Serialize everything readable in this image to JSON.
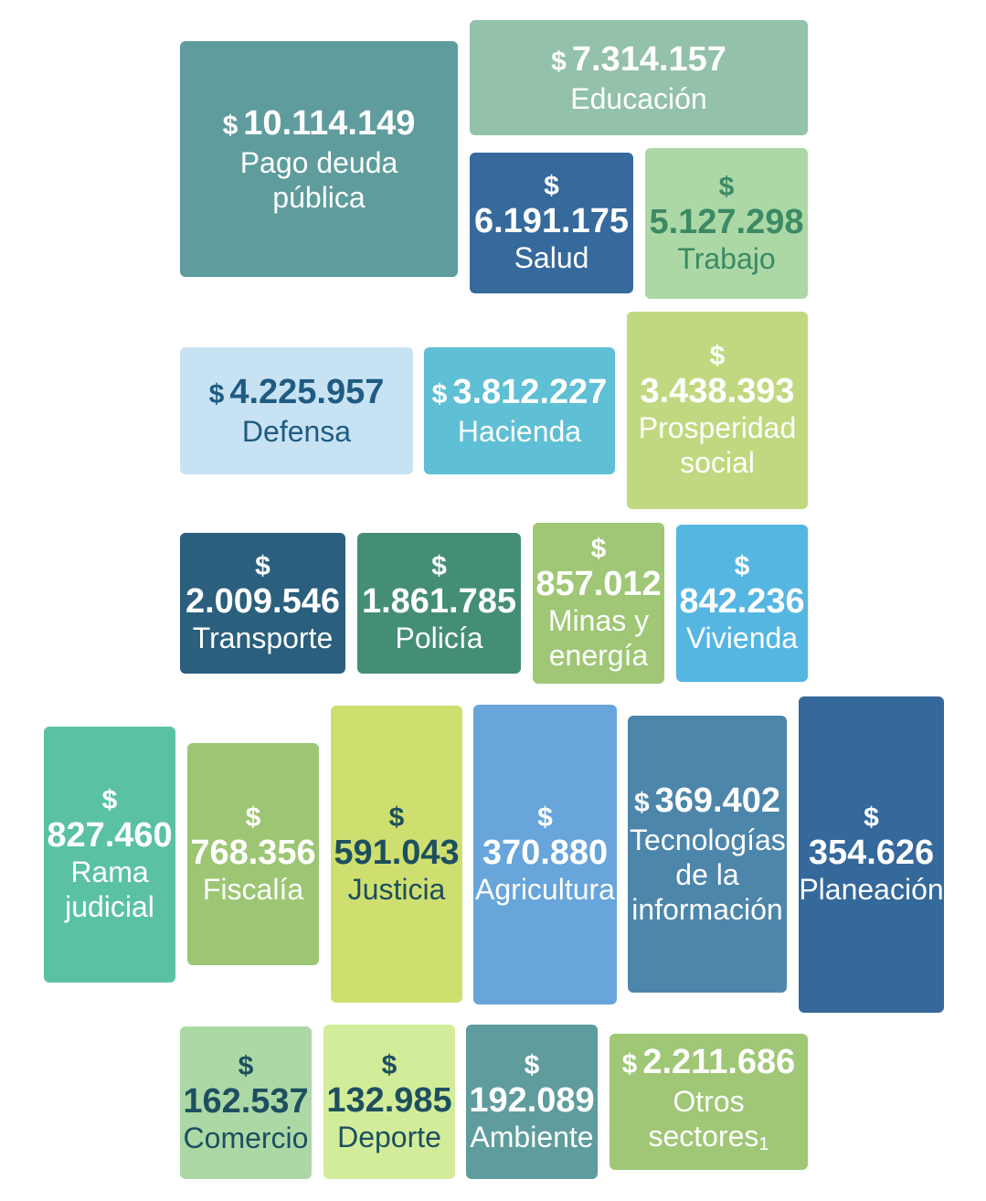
{
  "currency": "$",
  "tiles": {
    "pago_deuda": {
      "value": "10.114.149",
      "label": "Pago deuda pública",
      "color": "#5f9c9d"
    },
    "educacion": {
      "value": "7.314.157",
      "label": "Educación",
      "color": "#93c1aa"
    },
    "salud": {
      "value": "6.191.175",
      "label": "Salud",
      "color": "#36699c"
    },
    "trabajo": {
      "value": "5.127.298",
      "label": "Trabajo",
      "color": "#acd8a6"
    },
    "defensa": {
      "value": "4.225.957",
      "label": "Defensa",
      "color": "#c7e2f3"
    },
    "hacienda": {
      "value": "3.812.227",
      "label": "Hacienda",
      "color": "#5fbfd4"
    },
    "prosperidad": {
      "value": "3.438.393",
      "label": "Prosperidad social",
      "color": "#c0d980"
    },
    "transporte": {
      "value": "2.009.546",
      "label": "Transporte",
      "color": "#2a5f7e"
    },
    "policia": {
      "value": "1.861.785",
      "label": "Policía",
      "color": "#448f73"
    },
    "minas": {
      "value": "857.012",
      "label": "Minas y energía",
      "color": "#9fc776"
    },
    "vivienda": {
      "value": "842.236",
      "label": "Vivienda",
      "color": "#55b6e2"
    },
    "rama": {
      "value": "827.460",
      "label": "Rama judicial",
      "color": "#5bc1a5"
    },
    "fiscalia": {
      "value": "768.356",
      "label": "Fiscalía",
      "color": "#9dc674"
    },
    "justicia": {
      "value": "591.043",
      "label": "Justicia",
      "color": "#cfdf6f"
    },
    "agricultura": {
      "value": "370.880",
      "label": "Agricultura",
      "color": "#67a5da"
    },
    "tecnologias": {
      "value": "369.402",
      "label": "Tecnologías de la información",
      "color": "#4d86ab"
    },
    "planeacion": {
      "value": "354.626",
      "label": "Planeación",
      "color": "#35689b"
    },
    "comercio": {
      "value": "162.537",
      "label": "Comercio",
      "color": "#acd8a6"
    },
    "deporte": {
      "value": "132.985",
      "label": "Deporte",
      "color": "#d2ec99"
    },
    "ambiente": {
      "value": "192.089",
      "label": "Ambiente",
      "color": "#5f9c9d"
    },
    "otros": {
      "value": "2.211.686",
      "label": "Otros sectores",
      "footnote": "1",
      "color": "#9fc776"
    }
  }
}
